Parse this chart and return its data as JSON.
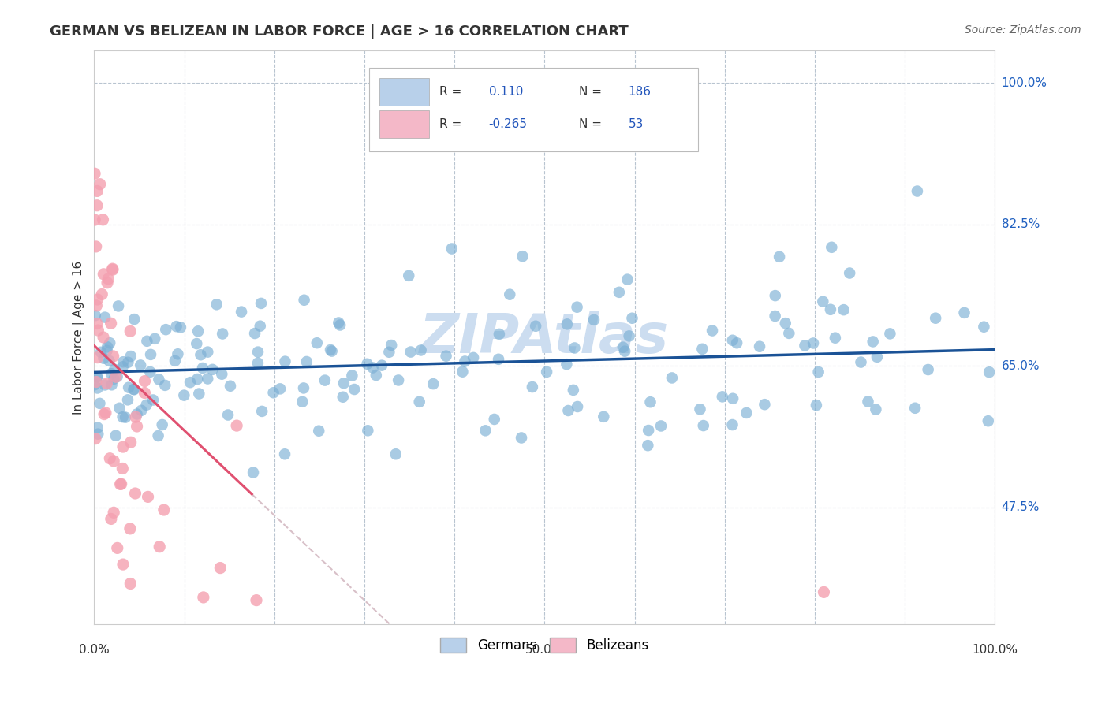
{
  "title": "GERMAN VS BELIZEAN IN LABOR FORCE | AGE > 16 CORRELATION CHART",
  "source": "Source: ZipAtlas.com",
  "ylabel": "In Labor Force | Age > 16",
  "xlim": [
    0.0,
    1.0
  ],
  "ylim": [
    0.33,
    1.04
  ],
  "yticks": [
    0.475,
    0.65,
    0.825,
    1.0
  ],
  "ytick_labels": [
    "47.5%",
    "65.0%",
    "82.5%",
    "100.0%"
  ],
  "xtick_vals": [
    0.0,
    0.1,
    0.2,
    0.3,
    0.4,
    0.5,
    0.6,
    0.7,
    0.8,
    0.9,
    1.0
  ],
  "german_R": 0.11,
  "german_N": 186,
  "belizean_R": -0.265,
  "belizean_N": 53,
  "german_color": "#7bafd4",
  "belizean_color": "#f4a0b0",
  "german_line_color": "#1a5296",
  "belizean_line_color": "#e05070",
  "belizean_dash_color": "#d8c0c8",
  "watermark_color": "#ccddf0",
  "background_color": "#ffffff",
  "legend_color_german": "#b8d0ea",
  "legend_color_belizean": "#f4b8c8",
  "german_line_intercept": 0.642,
  "german_line_slope": 0.028,
  "belizean_line_intercept": 0.675,
  "belizean_line_slope": -1.05,
  "belizean_solid_xend": 0.175,
  "belizean_dash_xend": 0.58
}
